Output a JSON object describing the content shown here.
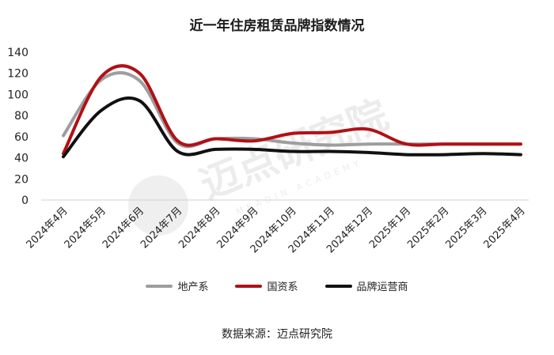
{
  "chart_data": {
    "type": "line",
    "title": "近一年住房租赁品牌指数情况",
    "categories": [
      "2024年4月",
      "2024年5月",
      "2024年6月",
      "2024年7月",
      "2024年8月",
      "2024年9月",
      "2024年10月",
      "2024年11月",
      "2024年12月",
      "2025年1月",
      "2025年2月",
      "2025年3月",
      "2025年4月"
    ],
    "ylim": [
      0,
      140
    ],
    "yticks": [
      0,
      20,
      40,
      60,
      80,
      100,
      120,
      140
    ],
    "grid": false,
    "legend_position": "bottom",
    "series": [
      {
        "name": "地产系",
        "color": "#9e9e9e",
        "values": [
          61,
          114,
          113,
          54,
          58,
          58,
          54,
          52,
          53,
          53,
          53,
          53,
          53
        ]
      },
      {
        "name": "国资系",
        "color": "#b01116",
        "values": [
          44,
          117,
          120,
          56,
          58,
          56,
          63,
          64,
          67,
          53,
          53,
          53,
          53
        ]
      },
      {
        "name": "品牌运营商",
        "color": "#111111",
        "values": [
          41,
          85,
          94,
          46,
          48,
          48,
          46,
          46,
          45,
          43,
          43,
          44,
          43
        ]
      }
    ]
  },
  "source": "数据来源：迈点研究院",
  "watermark": {
    "text": "迈点研究院",
    "subtext": "MEADIN ACADEMY"
  }
}
